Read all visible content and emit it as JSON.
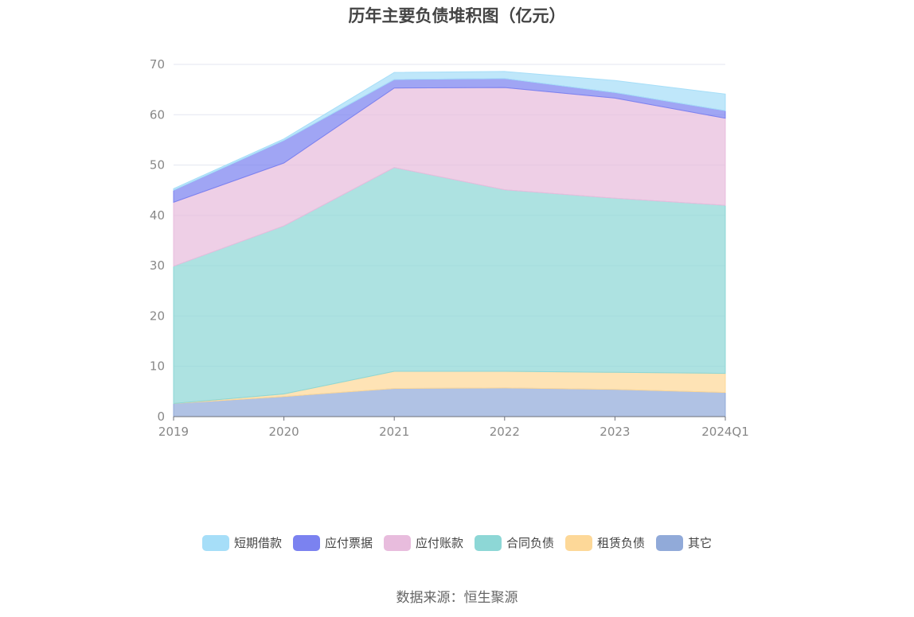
{
  "source_text": "数据来源：恒生聚源",
  "chart_data": {
    "type": "area",
    "stacked": true,
    "title": "历年主要负债堆积图（亿元）",
    "categories": [
      "2019",
      "2020",
      "2021",
      "2022",
      "2023",
      "2024Q1"
    ],
    "ylim": [
      0,
      70
    ],
    "yticks": [
      0,
      10,
      20,
      30,
      40,
      50,
      60,
      70
    ],
    "grid": true,
    "legend_position": "bottom",
    "series": [
      {
        "name": "其它",
        "color": "#91aad9",
        "values": [
          2.6,
          4.0,
          5.6,
          5.7,
          5.4,
          4.8
        ]
      },
      {
        "name": "租赁负债",
        "color": "#fdd898",
        "values": [
          0.0,
          0.5,
          3.4,
          3.3,
          3.4,
          3.8
        ]
      },
      {
        "name": "合同负债",
        "color": "#8dd7d6",
        "values": [
          27.3,
          33.4,
          40.5,
          36.1,
          34.6,
          33.4
        ]
      },
      {
        "name": "应付账款",
        "color": "#e8bcdd",
        "values": [
          12.7,
          12.5,
          15.8,
          20.3,
          19.9,
          17.3
        ]
      },
      {
        "name": "应付票据",
        "color": "#7b82f0",
        "values": [
          2.4,
          4.5,
          1.7,
          1.8,
          1.1,
          1.5
        ]
      },
      {
        "name": "短期借款",
        "color": "#a6def8",
        "values": [
          0.3,
          0.3,
          1.4,
          1.4,
          2.4,
          3.3
        ]
      }
    ]
  }
}
